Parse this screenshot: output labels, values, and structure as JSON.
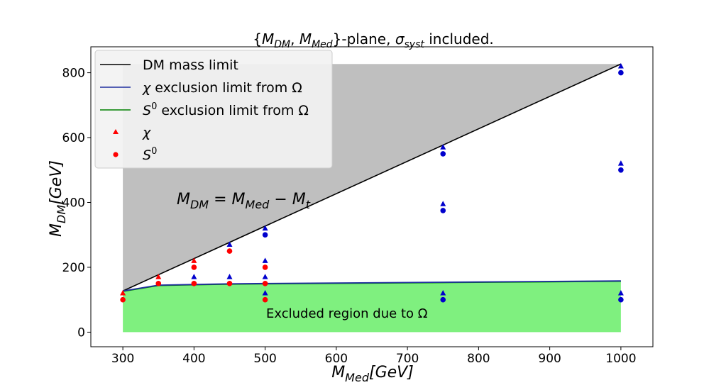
{
  "chart_data": {
    "type": "scatter",
    "title": "{M_DM, M_Med}-plane, σ_syst included.",
    "xlabel": "M_Med[GeV]",
    "ylabel": "M_DM[GeV]",
    "xlim": [
      255,
      1045
    ],
    "ylim": [
      -45,
      880
    ],
    "xticks": [
      300,
      400,
      500,
      600,
      700,
      800,
      900,
      1000
    ],
    "yticks": [
      0,
      200,
      400,
      600,
      800
    ],
    "grid": false,
    "legend_position": "top-left",
    "colors": {
      "dm_mass_limit": "#000000",
      "chi_exclusion_line": "#1f2f9f",
      "s0_exclusion_line": "#008000",
      "excluded_fill": "#7ff07f",
      "forbidden_fill": "#bfbfbf",
      "chi_excluded_marker": "#ff0000",
      "s0_excluded_marker": "#ff0000",
      "allowed_marker": "#0000cd"
    },
    "legend": [
      {
        "label": "DM mass limit",
        "kind": "line",
        "color": "#000000"
      },
      {
        "label": "χ exclusion limit from Ω",
        "kind": "line",
        "color": "#1f2f9f"
      },
      {
        "label": "S⁰ exclusion limit from Ω",
        "kind": "line",
        "color": "#008000"
      },
      {
        "label": "χ",
        "kind": "triangle",
        "color": "#ff0000"
      },
      {
        "label": "S⁰",
        "kind": "circle",
        "color": "#ff0000"
      }
    ],
    "annotations": {
      "mass_relation": "M_DM = M_Med − M_t",
      "excluded_region": "Excluded region due to Ω"
    },
    "series": [
      {
        "name": "DM mass limit",
        "kind": "line",
        "x": [
          300,
          1000
        ],
        "y": [
          127,
          827
        ]
      },
      {
        "name": "χ exclusion limit from Ω",
        "kind": "line",
        "x": [
          300,
          350,
          400,
          450,
          500,
          750,
          1000
        ],
        "y": [
          127,
          145,
          147,
          149,
          150,
          154,
          158
        ]
      },
      {
        "name": "S⁰ exclusion limit from Ω",
        "kind": "line",
        "x": [
          300,
          350,
          400,
          450,
          500,
          750,
          1000
        ],
        "y": [
          126,
          144,
          146,
          148,
          149,
          153,
          157
        ]
      },
      {
        "name": "χ",
        "kind": "triangle",
        "points": [
          {
            "x": 300,
            "y": 120,
            "excluded": true
          },
          {
            "x": 350,
            "y": 170,
            "excluded": true
          },
          {
            "x": 400,
            "y": 170,
            "excluded": false
          },
          {
            "x": 400,
            "y": 220,
            "excluded": true
          },
          {
            "x": 450,
            "y": 170,
            "excluded": false
          },
          {
            "x": 450,
            "y": 270,
            "excluded": false
          },
          {
            "x": 500,
            "y": 120,
            "excluded": false
          },
          {
            "x": 500,
            "y": 170,
            "excluded": false
          },
          {
            "x": 500,
            "y": 220,
            "excluded": false
          },
          {
            "x": 500,
            "y": 320,
            "excluded": false
          },
          {
            "x": 750,
            "y": 120,
            "excluded": false
          },
          {
            "x": 750,
            "y": 395,
            "excluded": false
          },
          {
            "x": 750,
            "y": 570,
            "excluded": false
          },
          {
            "x": 1000,
            "y": 120,
            "excluded": false
          },
          {
            "x": 1000,
            "y": 520,
            "excluded": false
          },
          {
            "x": 1000,
            "y": 820,
            "excluded": false
          }
        ]
      },
      {
        "name": "S⁰",
        "kind": "circle",
        "points": [
          {
            "x": 300,
            "y": 100,
            "excluded": true
          },
          {
            "x": 350,
            "y": 150,
            "excluded": true
          },
          {
            "x": 400,
            "y": 150,
            "excluded": true
          },
          {
            "x": 400,
            "y": 200,
            "excluded": true
          },
          {
            "x": 450,
            "y": 150,
            "excluded": true
          },
          {
            "x": 450,
            "y": 250,
            "excluded": true
          },
          {
            "x": 500,
            "y": 100,
            "excluded": true
          },
          {
            "x": 500,
            "y": 150,
            "excluded": true
          },
          {
            "x": 500,
            "y": 200,
            "excluded": true
          },
          {
            "x": 500,
            "y": 300,
            "excluded": false
          },
          {
            "x": 750,
            "y": 100,
            "excluded": false
          },
          {
            "x": 750,
            "y": 375,
            "excluded": false
          },
          {
            "x": 750,
            "y": 550,
            "excluded": false
          },
          {
            "x": 1000,
            "y": 100,
            "excluded": false
          },
          {
            "x": 1000,
            "y": 500,
            "excluded": false
          },
          {
            "x": 1000,
            "y": 800,
            "excluded": false
          }
        ]
      }
    ]
  }
}
